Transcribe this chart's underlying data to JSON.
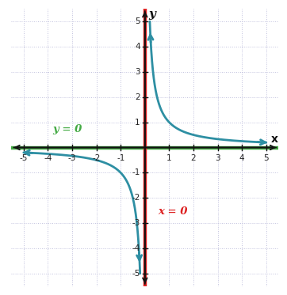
{
  "xlim": [
    -5.5,
    5.5
  ],
  "ylim": [
    -5.5,
    5.5
  ],
  "xticks": [
    -5,
    -4,
    -3,
    -2,
    -1,
    1,
    2,
    3,
    4,
    5
  ],
  "yticks": [
    -5,
    -4,
    -3,
    -2,
    -1,
    1,
    2,
    3,
    4,
    5
  ],
  "xlabel": "x",
  "ylabel": "y",
  "curve_color": "#2e8fa3",
  "asymptote_v_color": "#dd2222",
  "asymptote_h_color": "#44aa44",
  "label_x0": "x = 0",
  "label_y0": "y = 0",
  "background_color": "#ffffff",
  "grid_color": "#c0c0dd",
  "axis_color": "#111111",
  "curve_linewidth": 2.0,
  "asymptote_linewidth": 3.2,
  "figsize": [
    3.62,
    3.73
  ],
  "dpi": 100
}
